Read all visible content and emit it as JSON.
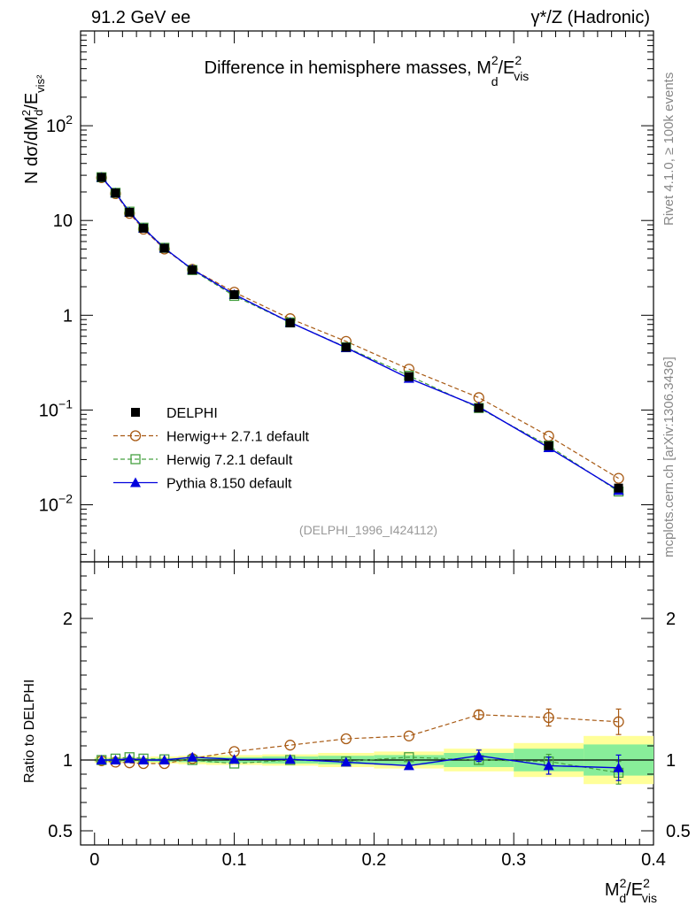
{
  "header": {
    "left": "91.2 GeV ee",
    "right": "γ*/Z (Hadronic)"
  },
  "side_labels": {
    "rivet": "Rivet 4.1.0, ≥ 100k events",
    "mcplots": "mcplots.cern.ch [arXiv:1306.3436]"
  },
  "chart_data": [
    {
      "type": "line",
      "panel": "main",
      "title": "Difference in hemisphere masses, M_d^2/E_vis^2",
      "title_text": "Difference in hemisphere masses, M",
      "title_sup": "2",
      "title_sub": "d",
      "title_tail": "/E",
      "title_tail_sup": "2",
      "title_tail_sub": "vis",
      "ylabel": "N  dσ/dM_d^2/E_vis^2",
      "yscale": "log",
      "ylim": [
        0.0025,
        1000
      ],
      "xlim": [
        -0.01,
        0.4
      ],
      "yticks": [
        {
          "value": 0.01,
          "label": "10",
          "sup": "−2"
        },
        {
          "value": 0.1,
          "label": "10",
          "sup": "−1"
        },
        {
          "value": 1,
          "label": "1",
          "sup": ""
        },
        {
          "value": 10,
          "label": "10",
          "sup": ""
        },
        {
          "value": 100,
          "label": "10",
          "sup": "2"
        }
      ],
      "watermark": "(DELPHI_1996_I424112)",
      "x": [
        0.005,
        0.015,
        0.025,
        0.035,
        0.05,
        0.07,
        0.1,
        0.14,
        0.18,
        0.225,
        0.275,
        0.325,
        0.375
      ],
      "series": [
        {
          "name": "DELPHI",
          "style": "data",
          "color": "#000000",
          "values": [
            28.5,
            19.5,
            12.2,
            8.3,
            5.1,
            3.0,
            1.65,
            0.83,
            0.46,
            0.225,
            0.105,
            0.042,
            0.015
          ]
        },
        {
          "name": "Herwig++ 2.7.1 default",
          "style": "circle",
          "color": "#a85a14",
          "values": [
            28.3,
            19.2,
            11.9,
            8.1,
            5.0,
            3.05,
            1.75,
            0.92,
            0.53,
            0.27,
            0.135,
            0.053,
            0.019
          ]
        },
        {
          "name": "Herwig 7.2.1 default",
          "style": "square",
          "color": "#46a041",
          "values": [
            28.6,
            19.6,
            12.4,
            8.4,
            5.15,
            3.0,
            1.6,
            0.84,
            0.46,
            0.23,
            0.105,
            0.042,
            0.0138
          ]
        },
        {
          "name": "Pythia 8.150 default",
          "style": "triangle",
          "color": "#0000dd",
          "values": [
            28.5,
            19.5,
            12.3,
            8.3,
            5.1,
            3.05,
            1.66,
            0.84,
            0.455,
            0.216,
            0.108,
            0.04,
            0.0142
          ]
        }
      ]
    },
    {
      "type": "line",
      "panel": "ratio",
      "ylabel": "Ratio to DELPHI",
      "xlabel": "M_d^2/E_vis^2",
      "ylim": [
        0.4,
        2.4
      ],
      "xlim": [
        -0.01,
        0.4
      ],
      "yticks": [
        {
          "value": 0.5,
          "label": "0.5"
        },
        {
          "value": 1,
          "label": "1"
        },
        {
          "value": 2,
          "label": "2"
        }
      ],
      "xticks": [
        {
          "value": 0,
          "label": "0"
        },
        {
          "value": 0.1,
          "label": "0.1"
        },
        {
          "value": 0.2,
          "label": "0.2"
        },
        {
          "value": 0.3,
          "label": "0.3"
        },
        {
          "value": 0.4,
          "label": "0.4"
        }
      ],
      "x": [
        0.005,
        0.015,
        0.025,
        0.035,
        0.05,
        0.07,
        0.1,
        0.14,
        0.18,
        0.225,
        0.275,
        0.325,
        0.375
      ],
      "bin_edges": [
        0.0,
        0.01,
        0.02,
        0.03,
        0.04,
        0.06,
        0.08,
        0.12,
        0.16,
        0.2,
        0.25,
        0.3,
        0.35,
        0.4
      ],
      "band_stat": [
        0.01,
        0.01,
        0.01,
        0.01,
        0.012,
        0.015,
        0.02,
        0.025,
        0.03,
        0.035,
        0.05,
        0.08,
        0.11
      ],
      "band_total": [
        0.02,
        0.02,
        0.02,
        0.02,
        0.025,
        0.03,
        0.035,
        0.04,
        0.05,
        0.06,
        0.08,
        0.12,
        0.17
      ],
      "series": [
        {
          "name": "Herwig++ 2.7.1 default",
          "style": "circle",
          "color": "#a85a14",
          "values": [
            0.995,
            0.985,
            0.98,
            0.975,
            0.975,
            1.01,
            1.06,
            1.105,
            1.15,
            1.17,
            1.32,
            1.3,
            1.27
          ],
          "errors": [
            0,
            0,
            0,
            0,
            0,
            0,
            0,
            0,
            0,
            0,
            0.03,
            0.06,
            0.09
          ]
        },
        {
          "name": "Herwig 7.2.1 default",
          "style": "square",
          "color": "#46a041",
          "values": [
            1.0,
            1.01,
            1.02,
            1.01,
            1.005,
            1.0,
            0.975,
            1.0,
            0.99,
            1.02,
            1.0,
            0.99,
            0.91
          ],
          "errors": [
            0,
            0,
            0,
            0,
            0,
            0,
            0,
            0,
            0,
            0,
            0.03,
            0.05,
            0.08
          ]
        },
        {
          "name": "Pythia 8.150 default",
          "style": "triangle",
          "color": "#0000dd",
          "values": [
            1.0,
            1.0,
            1.01,
            1.0,
            1.0,
            1.02,
            1.005,
            1.005,
            0.985,
            0.96,
            1.03,
            0.96,
            0.945
          ],
          "errors": [
            0,
            0,
            0,
            0,
            0,
            0,
            0,
            0,
            0,
            0,
            0.04,
            0.06,
            0.09
          ]
        }
      ]
    }
  ]
}
